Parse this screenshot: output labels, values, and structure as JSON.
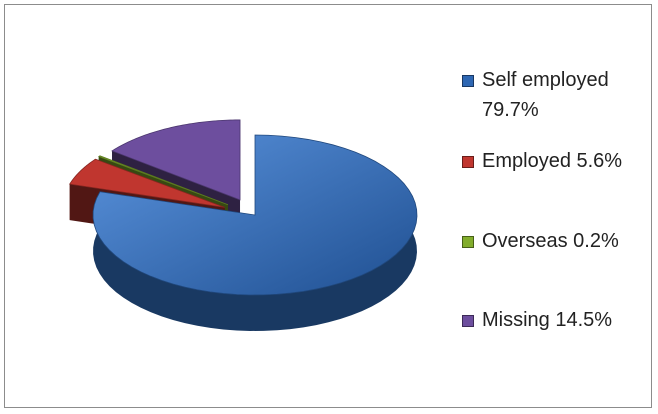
{
  "chart_data": {
    "type": "pie",
    "style": "3d-exploded",
    "title": "",
    "legend_position": "right",
    "series": [
      {
        "name": "Self employed",
        "value": 79.7,
        "label": "Self employed\n79.7%",
        "color": "#2e67b3"
      },
      {
        "name": "Employed",
        "value": 5.6,
        "label": "Employed 5.6%",
        "color": "#c0362f"
      },
      {
        "name": "Overseas",
        "value": 0.2,
        "label": "Overseas 0.2%",
        "color": "#82ad2c"
      },
      {
        "name": "Missing",
        "value": 14.5,
        "label": "Missing 14.5%",
        "color": "#6d4e9e"
      }
    ]
  }
}
